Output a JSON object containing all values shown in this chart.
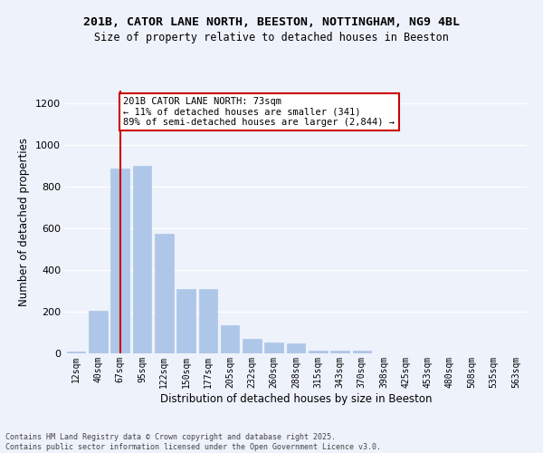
{
  "title_line1": "201B, CATOR LANE NORTH, BEESTON, NOTTINGHAM, NG9 4BL",
  "title_line2": "Size of property relative to detached houses in Beeston",
  "xlabel": "Distribution of detached houses by size in Beeston",
  "ylabel": "Number of detached properties",
  "categories": [
    "12sqm",
    "40sqm",
    "67sqm",
    "95sqm",
    "122sqm",
    "150sqm",
    "177sqm",
    "205sqm",
    "232sqm",
    "260sqm",
    "288sqm",
    "315sqm",
    "343sqm",
    "370sqm",
    "398sqm",
    "425sqm",
    "453sqm",
    "480sqm",
    "508sqm",
    "535sqm",
    "563sqm"
  ],
  "values": [
    10,
    205,
    885,
    900,
    575,
    308,
    308,
    135,
    68,
    50,
    47,
    13,
    13,
    13,
    0,
    0,
    0,
    0,
    0,
    0,
    0
  ],
  "bar_color": "#aec6e8",
  "bar_edgecolor": "#aec6e8",
  "vline_x": 2.0,
  "vline_color": "#cc0000",
  "annotation_text": "201B CATOR LANE NORTH: 73sqm\n← 11% of detached houses are smaller (341)\n89% of semi-detached houses are larger (2,844) →",
  "annotation_box_color": "#cc0000",
  "ylim": [
    0,
    1260
  ],
  "yticks": [
    0,
    200,
    400,
    600,
    800,
    1000,
    1200
  ],
  "background_color": "#eef2fb",
  "grid_color": "#ffffff",
  "footer_line1": "Contains HM Land Registry data © Crown copyright and database right 2025.",
  "footer_line2": "Contains public sector information licensed under the Open Government Licence v3.0."
}
